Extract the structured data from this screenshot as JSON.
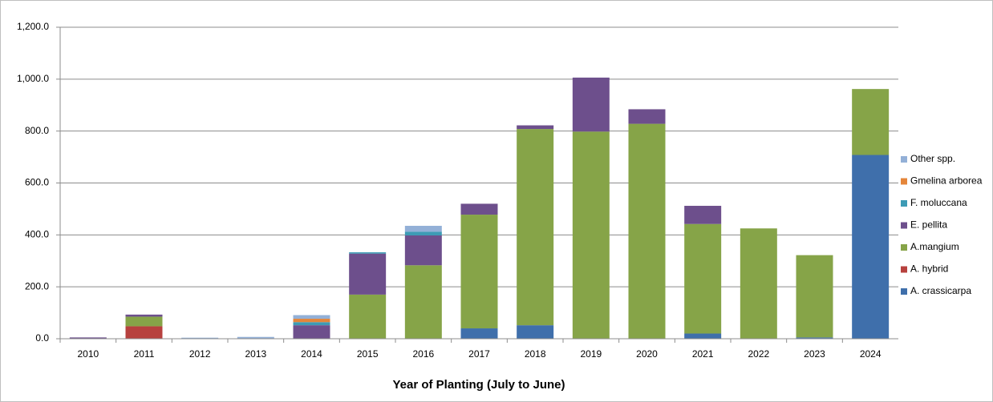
{
  "chart_data": {
    "type": "stacked_bar",
    "x_label": "Year of Planting (July to June)",
    "categories": [
      "2010",
      "2011",
      "2012",
      "2013",
      "2014",
      "2015",
      "2016",
      "2017",
      "2018",
      "2019",
      "2020",
      "2021",
      "2022",
      "2023",
      "2024"
    ],
    "series": [
      {
        "name": "A. crassicarpa",
        "color": "#3f6fab",
        "values": [
          0,
          0,
          0,
          0,
          0,
          0,
          0,
          40,
          52,
          0,
          0,
          20,
          0,
          5,
          708
        ]
      },
      {
        "name": "A. hybrid",
        "color": "#b7413e",
        "values": [
          0,
          48,
          0,
          0,
          0,
          0,
          0,
          0,
          0,
          0,
          0,
          0,
          0,
          0,
          0
        ]
      },
      {
        "name": "A.mangium",
        "color": "#86a448",
        "values": [
          0,
          37,
          0,
          0,
          0,
          170,
          283,
          438,
          756,
          798,
          828,
          422,
          425,
          317,
          254
        ]
      },
      {
        "name": "E. pellita",
        "color": "#6d4f8c",
        "values": [
          5,
          8,
          0,
          0,
          52,
          158,
          115,
          42,
          14,
          208,
          56,
          70,
          0,
          0,
          0
        ]
      },
      {
        "name": "F. moluccana",
        "color": "#3d9bb5",
        "values": [
          0,
          0,
          0,
          0,
          12,
          5,
          14,
          0,
          0,
          0,
          0,
          0,
          0,
          0,
          0
        ]
      },
      {
        "name": "Gmelina arborea",
        "color": "#e5863a",
        "values": [
          0,
          0,
          0,
          0,
          13,
          0,
          0,
          0,
          0,
          0,
          0,
          0,
          0,
          0,
          0
        ]
      },
      {
        "name": "Other spp.",
        "color": "#93b0d7",
        "values": [
          0,
          0,
          4,
          7,
          14,
          0,
          23,
          0,
          0,
          0,
          0,
          0,
          0,
          0,
          0
        ]
      }
    ],
    "ylim": [
      0,
      1200
    ],
    "yticks": [
      {
        "value": 0,
        "label": "0.0"
      },
      {
        "value": 200,
        "label": "200.0"
      },
      {
        "value": 400,
        "label": "400.0"
      },
      {
        "value": 600,
        "label": "600.0"
      },
      {
        "value": 800,
        "label": "800.0"
      },
      {
        "value": 1000,
        "label": "1,000.0"
      },
      {
        "value": 1200,
        "label": "1,200.0"
      }
    ],
    "grid": true,
    "legend": "right"
  }
}
